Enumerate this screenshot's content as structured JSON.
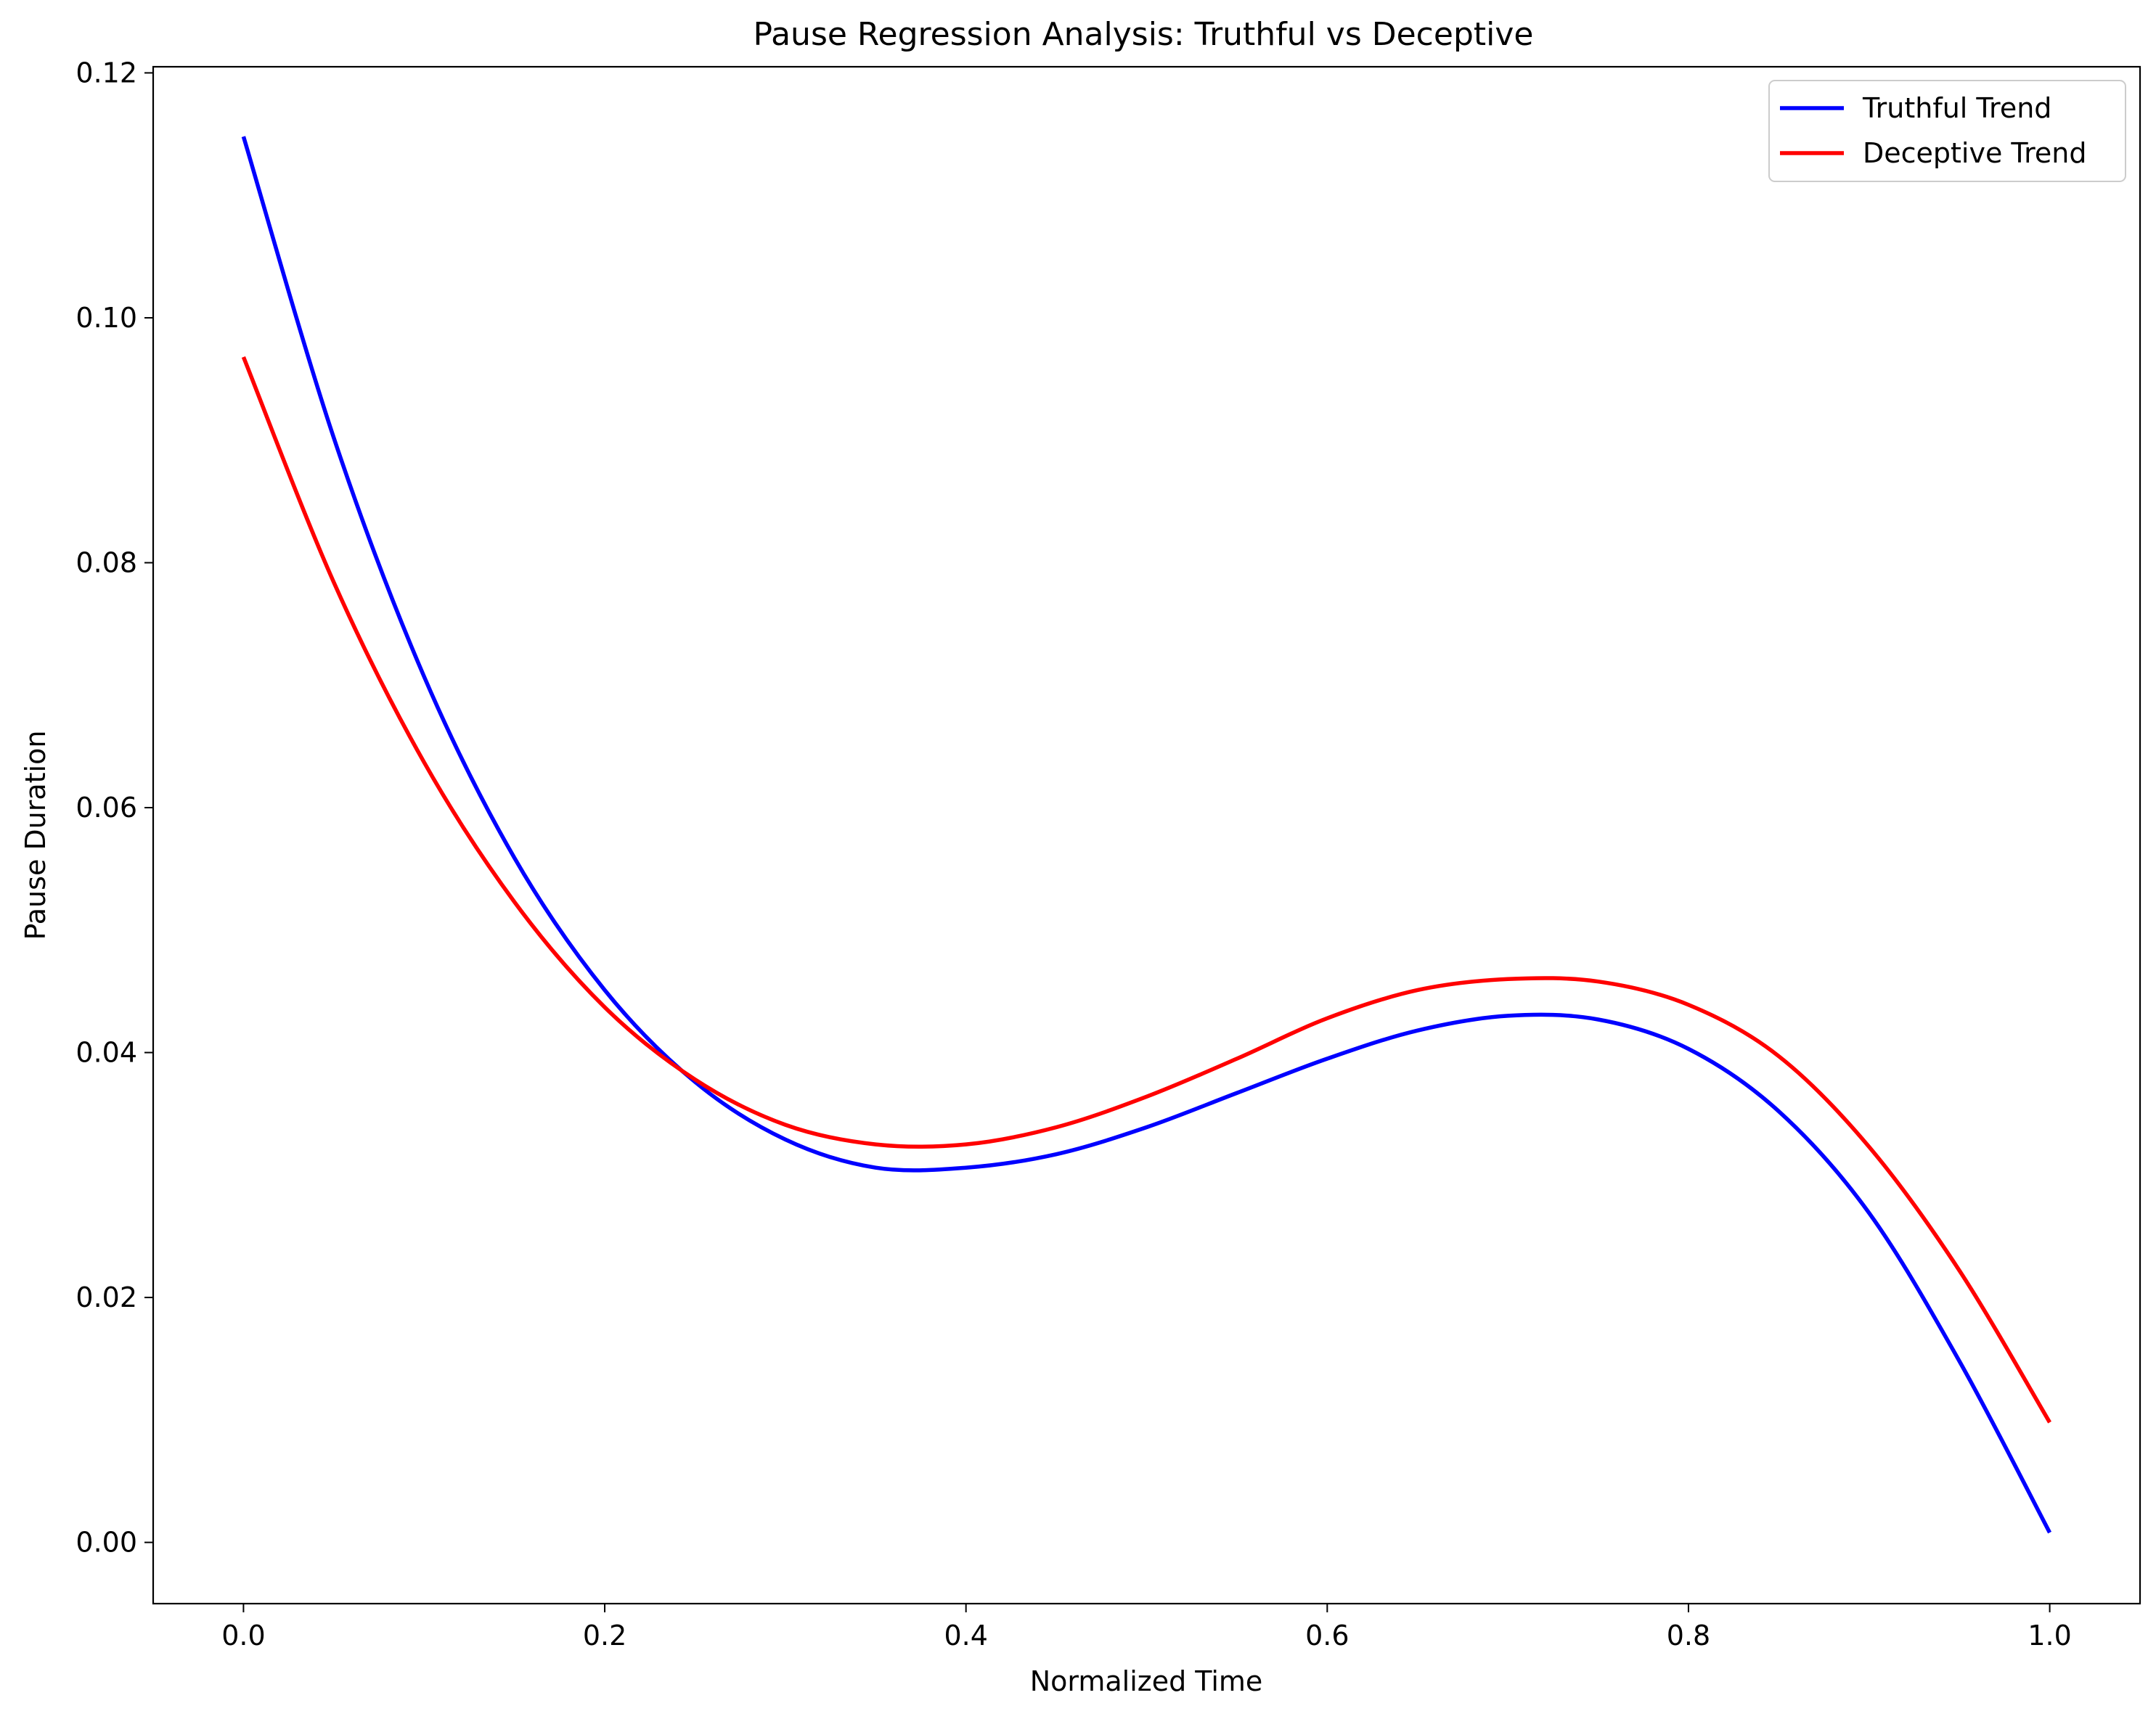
{
  "chart_data": {
    "type": "line",
    "title": "Pause Regression Analysis: Truthful vs Deceptive",
    "xlabel": "Normalized Time",
    "ylabel": "Pause Duration",
    "xlim": [
      -0.05,
      1.05
    ],
    "ylim": [
      -0.005,
      0.1205
    ],
    "xticks": [
      0.0,
      0.2,
      0.4,
      0.6,
      0.8,
      1.0
    ],
    "xtick_labels": [
      "0.0",
      "0.2",
      "0.4",
      "0.6",
      "0.8",
      "1.0"
    ],
    "yticks": [
      0.0,
      0.02,
      0.04,
      0.06,
      0.08,
      0.1,
      0.12
    ],
    "ytick_labels": [
      "0.00",
      "0.02",
      "0.04",
      "0.06",
      "0.08",
      "0.10",
      "0.12"
    ],
    "grid": false,
    "legend_position": "top-right",
    "series": [
      {
        "name": "Truthful Trend",
        "color": "#0000ff",
        "x": [
          0.0,
          0.05,
          0.1,
          0.15,
          0.2,
          0.25,
          0.3,
          0.35,
          0.4,
          0.45,
          0.5,
          0.55,
          0.6,
          0.65,
          0.7,
          0.75,
          0.8,
          0.85,
          0.9,
          0.95,
          1.0
        ],
        "y": [
          0.1148,
          0.0902,
          0.0707,
          0.0559,
          0.0451,
          0.0376,
          0.0329,
          0.0306,
          0.0306,
          0.0317,
          0.0339,
          0.0367,
          0.0395,
          0.0418,
          0.043,
          0.0427,
          0.0403,
          0.0352,
          0.0269,
          0.0148,
          0.0008
        ]
      },
      {
        "name": "Deceptive Trend",
        "color": "#ff0000",
        "x": [
          0.0,
          0.05,
          0.1,
          0.15,
          0.2,
          0.25,
          0.3,
          0.35,
          0.4,
          0.45,
          0.5,
          0.55,
          0.6,
          0.65,
          0.7,
          0.75,
          0.8,
          0.85,
          0.9,
          0.95,
          1.0
        ],
        "y": [
          0.0968,
          0.0784,
          0.0637,
          0.0523,
          0.0437,
          0.0378,
          0.0341,
          0.0325,
          0.0325,
          0.0339,
          0.0364,
          0.0395,
          0.0428,
          0.0451,
          0.046,
          0.0458,
          0.0439,
          0.0397,
          0.0323,
          0.0222,
          0.0098
        ]
      }
    ]
  }
}
